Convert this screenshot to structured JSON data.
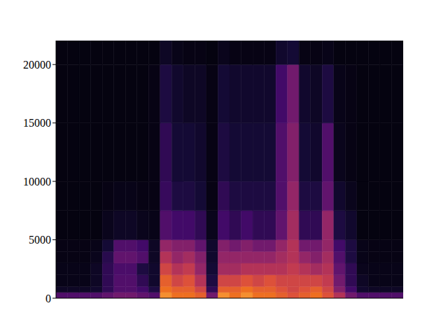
{
  "chart_data": {
    "type": "heatmap",
    "xlim": [
      0,
      30
    ],
    "ylim": [
      0,
      22050
    ],
    "yticks": [
      0,
      5000,
      10000,
      15000,
      20000
    ],
    "tick_labels": "y",
    "x_bins": [
      0,
      1,
      2,
      3,
      4,
      5,
      6,
      7,
      8,
      9,
      10,
      11,
      12,
      13,
      14,
      15,
      16,
      17,
      18,
      19,
      20,
      21,
      22,
      23,
      24,
      25,
      26,
      27,
      28,
      29,
      30
    ],
    "y_bins": [
      0,
      500,
      1000,
      2000,
      3000,
      4000,
      5000,
      7500,
      10000,
      15000,
      20000,
      22050
    ],
    "color_range": [
      0,
      1
    ],
    "cells": [
      [
        0.3,
        0.3,
        0.3,
        0.3,
        0.35,
        0.4,
        0.4,
        0.35,
        0.3,
        0.9,
        0.85,
        0.85,
        0.8,
        0.4,
        0.9,
        0.85,
        0.9,
        0.85,
        0.85,
        0.8,
        0.75,
        0.8,
        0.85,
        0.75,
        0.6,
        0.4,
        0.3,
        0.3,
        0.3,
        0.3
      ],
      [
        0.08,
        0.08,
        0.08,
        0.1,
        0.2,
        0.3,
        0.3,
        0.25,
        0.15,
        0.85,
        0.8,
        0.8,
        0.7,
        0.2,
        0.8,
        0.8,
        0.85,
        0.8,
        0.8,
        0.75,
        0.7,
        0.75,
        0.8,
        0.7,
        0.45,
        0.25,
        0.1,
        0.08,
        0.08,
        0.08
      ],
      [
        0.05,
        0.05,
        0.05,
        0.08,
        0.2,
        0.3,
        0.3,
        0.2,
        0.1,
        0.8,
        0.7,
        0.75,
        0.6,
        0.15,
        0.7,
        0.7,
        0.75,
        0.7,
        0.75,
        0.7,
        0.7,
        0.7,
        0.7,
        0.65,
        0.4,
        0.2,
        0.08,
        0.05,
        0.05,
        0.05
      ],
      [
        0.05,
        0.05,
        0.05,
        0.08,
        0.2,
        0.28,
        0.28,
        0.15,
        0.1,
        0.7,
        0.6,
        0.65,
        0.5,
        0.12,
        0.55,
        0.55,
        0.6,
        0.6,
        0.6,
        0.6,
        0.65,
        0.6,
        0.55,
        0.6,
        0.35,
        0.2,
        0.06,
        0.05,
        0.05,
        0.05
      ],
      [
        0.04,
        0.04,
        0.04,
        0.06,
        0.18,
        0.35,
        0.35,
        0.3,
        0.08,
        0.6,
        0.5,
        0.55,
        0.45,
        0.1,
        0.5,
        0.5,
        0.5,
        0.5,
        0.5,
        0.55,
        0.6,
        0.5,
        0.45,
        0.55,
        0.3,
        0.15,
        0.05,
        0.04,
        0.04,
        0.04
      ],
      [
        0.04,
        0.04,
        0.04,
        0.05,
        0.12,
        0.3,
        0.3,
        0.25,
        0.08,
        0.5,
        0.45,
        0.45,
        0.35,
        0.1,
        0.45,
        0.4,
        0.45,
        0.4,
        0.4,
        0.5,
        0.6,
        0.4,
        0.4,
        0.5,
        0.25,
        0.15,
        0.05,
        0.04,
        0.04,
        0.04
      ],
      [
        0.03,
        0.03,
        0.03,
        0.03,
        0.06,
        0.08,
        0.08,
        0.06,
        0.05,
        0.3,
        0.25,
        0.25,
        0.2,
        0.06,
        0.25,
        0.2,
        0.25,
        0.2,
        0.2,
        0.35,
        0.55,
        0.2,
        0.2,
        0.5,
        0.15,
        0.1,
        0.03,
        0.03,
        0.03,
        0.03
      ],
      [
        0.03,
        0.03,
        0.03,
        0.03,
        0.04,
        0.05,
        0.05,
        0.04,
        0.04,
        0.22,
        0.15,
        0.15,
        0.12,
        0.04,
        0.2,
        0.15,
        0.15,
        0.15,
        0.15,
        0.3,
        0.5,
        0.15,
        0.15,
        0.35,
        0.1,
        0.06,
        0.03,
        0.03,
        0.03,
        0.03
      ],
      [
        0.03,
        0.03,
        0.03,
        0.03,
        0.03,
        0.03,
        0.03,
        0.03,
        0.04,
        0.2,
        0.12,
        0.12,
        0.1,
        0.04,
        0.15,
        0.12,
        0.12,
        0.12,
        0.12,
        0.3,
        0.45,
        0.12,
        0.1,
        0.3,
        0.06,
        0.04,
        0.03,
        0.03,
        0.03,
        0.03
      ],
      [
        0.03,
        0.03,
        0.03,
        0.03,
        0.03,
        0.03,
        0.03,
        0.03,
        0.04,
        0.15,
        0.1,
        0.08,
        0.08,
        0.04,
        0.12,
        0.1,
        0.1,
        0.1,
        0.1,
        0.25,
        0.4,
        0.1,
        0.08,
        0.15,
        0.05,
        0.04,
        0.03,
        0.03,
        0.03,
        0.03
      ],
      [
        0.03,
        0.03,
        0.03,
        0.03,
        0.03,
        0.03,
        0.03,
        0.03,
        0.03,
        0.08,
        0.05,
        0.04,
        0.04,
        0.03,
        0.06,
        0.04,
        0.04,
        0.04,
        0.04,
        0.1,
        0.12,
        0.04,
        0.04,
        0.05,
        0.03,
        0.03,
        0.03,
        0.03,
        0.03,
        0.03
      ]
    ]
  }
}
